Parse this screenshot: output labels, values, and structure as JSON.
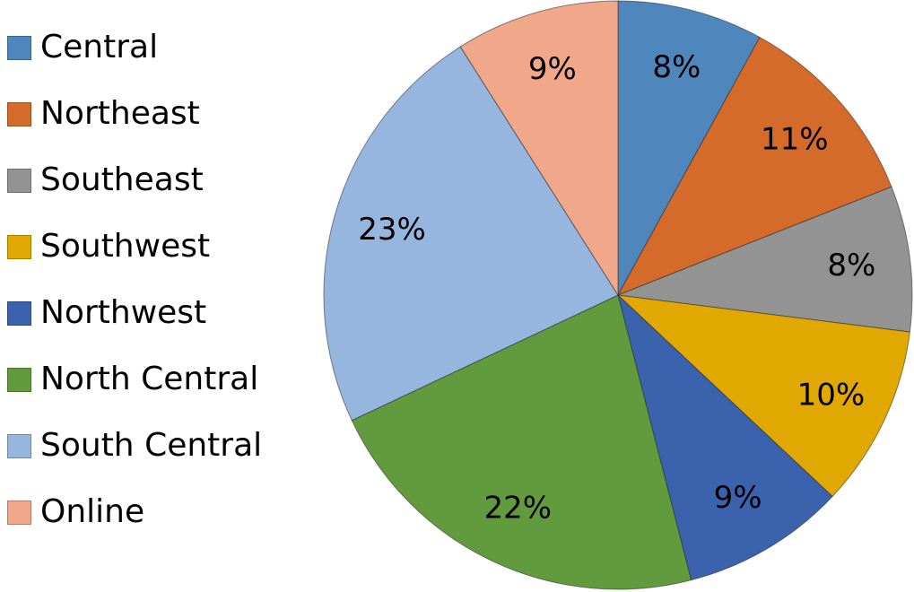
{
  "chart_data": {
    "type": "pie",
    "categories": [
      "Central",
      "Northeast",
      "Southeast",
      "Southwest",
      "Northwest",
      "North Central",
      "South Central",
      "Online"
    ],
    "values": [
      8,
      11,
      8,
      10,
      9,
      22,
      23,
      9
    ],
    "labels": [
      "8%",
      "11%",
      "8%",
      "10%",
      "9%",
      "22%",
      "23%",
      "9%"
    ],
    "colors": [
      "#4f87bd",
      "#d46b2a",
      "#939393",
      "#e0a800",
      "#3b62ad",
      "#629a3e",
      "#97b6df",
      "#f0a78a"
    ],
    "legend_position": "left",
    "start_angle": "top",
    "direction": "clockwise"
  }
}
